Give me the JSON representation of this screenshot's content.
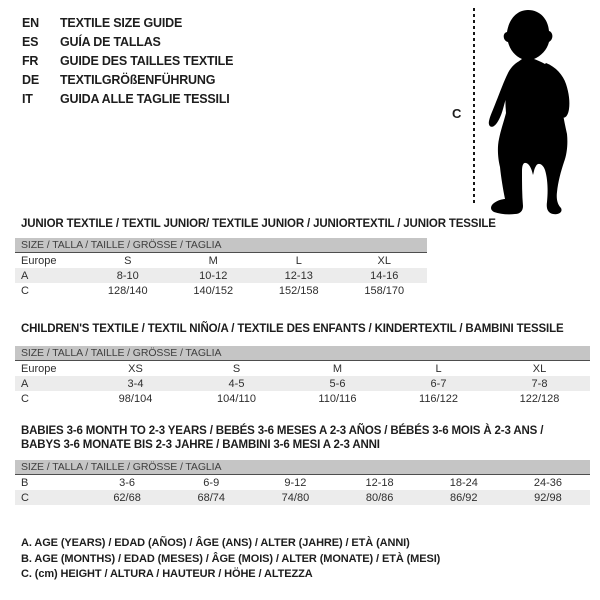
{
  "languages": {
    "items": [
      {
        "code": "EN",
        "label": "TEXTILE SIZE GUIDE"
      },
      {
        "code": "ES",
        "label": "GUÍA DE TALLAS"
      },
      {
        "code": "FR",
        "label": "GUIDE DES TAILLES TEXTILE"
      },
      {
        "code": "DE",
        "label": "TEXTILGRÖßENFÜHRUNG"
      },
      {
        "code": "IT",
        "label": "GUIDA ALLE TAGLIE TESSILI"
      }
    ]
  },
  "figure": {
    "measure_label": "C"
  },
  "sections": [
    {
      "heading": "JUNIOR TEXTILE / TEXTIL JUNIOR/ TEXTILE JUNIOR / JUNIORTEXTIL / JUNIOR TESSILE",
      "size_header": "SIZE / TALLA / TAILLE / GRÖSSE / TAGLIA",
      "rows": [
        {
          "label": "Europe",
          "values": [
            "S",
            "M",
            "L",
            "XL"
          ]
        },
        {
          "label": "A",
          "values": [
            "8-10",
            "10-12",
            "12-13",
            "14-16"
          ]
        },
        {
          "label": "C",
          "values": [
            "128/140",
            "140/152",
            "152/158",
            "158/170"
          ]
        }
      ]
    },
    {
      "heading": "CHILDREN'S TEXTILE / TEXTIL NIÑO/A / TEXTILE DES ENFANTS / KINDERTEXTIL / BAMBINI TESSILE",
      "size_header": "SIZE / TALLA / TAILLE / GRÖSSE / TAGLIA",
      "rows": [
        {
          "label": "Europe",
          "values": [
            "XS",
            "S",
            "M",
            "L",
            "XL"
          ]
        },
        {
          "label": "A",
          "values": [
            "3-4",
            "4-5",
            "5-6",
            "6-7",
            "7-8"
          ]
        },
        {
          "label": "C",
          "values": [
            "98/104",
            "104/110",
            "110/116",
            "116/122",
            "122/128"
          ]
        }
      ]
    },
    {
      "heading": "BABIES 3-6 MONTH TO 2-3 YEARS / BEBÉS 3-6 MESES A 2-3 AÑOS / BÉBÉS 3-6 MOIS À 2-3 ANS /\nBABYS 3-6 MONATE BIS 2-3 JAHRE / BAMBINI 3-6 MESI A 2-3 ANNI",
      "size_header": "SIZE / TALLA / TAILLE / GRÖSSE / TAGLIA",
      "rows": [
        {
          "label": "B",
          "values": [
            "3-6",
            "6-9",
            "9-12",
            "12-18",
            "18-24",
            "24-36"
          ]
        },
        {
          "label": "C",
          "values": [
            "62/68",
            "68/74",
            "74/80",
            "80/86",
            "86/92",
            "92/98"
          ]
        }
      ]
    }
  ],
  "legend": {
    "items": [
      "A. AGE (YEARS) / EDAD (AÑOS) / ÂGE (ANS) / ALTER (JAHRE) / ETÀ (ANNI)",
      "B. AGE (MONTHS) / EDAD (MESES) / ÂGE (MOIS) / ALTER (MONATE) / ETÀ (MESI)",
      "C. (cm) HEIGHT / ALTURA / HAUTEUR / HÖHE / ALTEZZA"
    ]
  },
  "colors": {
    "table_header_bg": "#c5c5c5",
    "row_alt_bg": "#ececec",
    "divider": "#4d4d4d",
    "text": "#2e2e2e",
    "silhouette": "#000000"
  }
}
